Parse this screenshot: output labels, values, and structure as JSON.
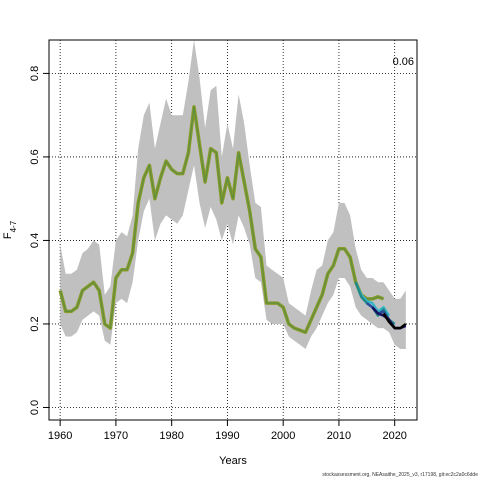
{
  "chart_data": {
    "type": "line",
    "title": "",
    "xlabel": "Years",
    "ylabel_main": "F",
    "ylabel_sub": "4-7",
    "corner_label": "0.06",
    "footer": "stockassessment.org, NEAsaithe_2025_v3, r17198, git:ec2c2a0c6dde",
    "xlim": [
      1958,
      2024
    ],
    "ylim": [
      -0.03,
      0.88
    ],
    "xticks": [
      1960,
      1970,
      1980,
      1990,
      2000,
      2010,
      2020
    ],
    "yticks": [
      0.0,
      0.2,
      0.4,
      0.6,
      0.8
    ],
    "grid": true,
    "colors": {
      "band": "#c0c0c0",
      "main_line": "#8a9a2a",
      "main_line_inner": "#5e8f3e",
      "grid": "#000000"
    },
    "band": {
      "x": [
        1960,
        1961,
        1962,
        1963,
        1964,
        1965,
        1966,
        1967,
        1968,
        1969,
        1970,
        1971,
        1972,
        1973,
        1974,
        1975,
        1976,
        1977,
        1978,
        1979,
        1980,
        1981,
        1982,
        1983,
        1984,
        1985,
        1986,
        1987,
        1988,
        1989,
        1990,
        1991,
        1992,
        1993,
        1994,
        1995,
        1996,
        1997,
        1998,
        1999,
        2000,
        2001,
        2002,
        2003,
        2004,
        2005,
        2006,
        2007,
        2008,
        2009,
        2010,
        2011,
        2012,
        2013,
        2014,
        2015,
        2016,
        2017,
        2018,
        2019,
        2020,
        2021,
        2022
      ],
      "lower": [
        0.2,
        0.17,
        0.17,
        0.18,
        0.21,
        0.22,
        0.23,
        0.22,
        0.16,
        0.15,
        0.25,
        0.26,
        0.25,
        0.3,
        0.4,
        0.47,
        0.5,
        0.4,
        0.44,
        0.46,
        0.45,
        0.44,
        0.46,
        0.52,
        0.58,
        0.49,
        0.43,
        0.48,
        0.45,
        0.4,
        0.44,
        0.39,
        0.46,
        0.43,
        0.39,
        0.31,
        0.3,
        0.21,
        0.2,
        0.2,
        0.2,
        0.17,
        0.16,
        0.15,
        0.14,
        0.17,
        0.19,
        0.22,
        0.25,
        0.27,
        0.31,
        0.31,
        0.29,
        0.24,
        0.22,
        0.21,
        0.2,
        0.19,
        0.19,
        0.18,
        0.15,
        0.14,
        0.14
      ],
      "upper": [
        0.39,
        0.32,
        0.32,
        0.33,
        0.37,
        0.38,
        0.4,
        0.39,
        0.27,
        0.29,
        0.4,
        0.42,
        0.41,
        0.46,
        0.62,
        0.7,
        0.73,
        0.62,
        0.68,
        0.74,
        0.7,
        0.7,
        0.7,
        0.78,
        0.88,
        0.79,
        0.67,
        0.76,
        0.77,
        0.6,
        0.68,
        0.62,
        0.75,
        0.68,
        0.58,
        0.49,
        0.48,
        0.34,
        0.33,
        0.32,
        0.31,
        0.25,
        0.24,
        0.23,
        0.22,
        0.28,
        0.33,
        0.34,
        0.4,
        0.42,
        0.49,
        0.49,
        0.46,
        0.38,
        0.33,
        0.31,
        0.31,
        0.3,
        0.3,
        0.28,
        0.26,
        0.26,
        0.28
      ]
    },
    "series": [
      {
        "role": "main",
        "x": [
          1960,
          1961,
          1962,
          1963,
          1964,
          1965,
          1966,
          1967,
          1968,
          1969,
          1970,
          1971,
          1972,
          1973,
          1974,
          1975,
          1976,
          1977,
          1978,
          1979,
          1980,
          1981,
          1982,
          1983,
          1984,
          1985,
          1986,
          1987,
          1988,
          1989,
          1990,
          1991,
          1992,
          1993,
          1994,
          1995,
          1996,
          1997,
          1998,
          1999,
          2000,
          2001,
          2002,
          2003,
          2004,
          2005,
          2006,
          2007,
          2008,
          2009,
          2010,
          2011,
          2012,
          2013,
          2014,
          2015,
          2016,
          2017,
          2018
        ],
        "values": [
          0.28,
          0.23,
          0.23,
          0.24,
          0.28,
          0.29,
          0.3,
          0.28,
          0.2,
          0.19,
          0.31,
          0.33,
          0.33,
          0.37,
          0.49,
          0.55,
          0.58,
          0.5,
          0.55,
          0.59,
          0.57,
          0.56,
          0.56,
          0.61,
          0.72,
          0.63,
          0.54,
          0.62,
          0.61,
          0.49,
          0.55,
          0.5,
          0.61,
          0.54,
          0.47,
          0.38,
          0.36,
          0.25,
          0.25,
          0.25,
          0.24,
          0.2,
          0.19,
          0.185,
          0.18,
          0.21,
          0.24,
          0.27,
          0.32,
          0.34,
          0.38,
          0.38,
          0.36,
          0.3,
          0.27,
          0.26,
          0.26,
          0.265,
          0.26
        ]
      },
      {
        "role": "retro-cyan",
        "color": "#3ab6c8",
        "x": [
          2013,
          2014,
          2015,
          2016,
          2017,
          2018,
          2019
        ],
        "values": [
          0.3,
          0.27,
          0.255,
          0.25,
          0.23,
          0.24,
          0.22
        ]
      },
      {
        "role": "retro-teal",
        "color": "#1f8a8a",
        "x": [
          2013,
          2014,
          2015,
          2016,
          2017,
          2018,
          2019,
          2020
        ],
        "values": [
          0.3,
          0.265,
          0.25,
          0.24,
          0.22,
          0.235,
          0.21,
          0.2
        ]
      },
      {
        "role": "retro-blue",
        "color": "#2a4a9a",
        "x": [
          2015,
          2016,
          2017,
          2018,
          2019,
          2020,
          2021
        ],
        "values": [
          0.25,
          0.24,
          0.225,
          0.23,
          0.21,
          0.19,
          0.19
        ]
      },
      {
        "role": "retro-navy",
        "color": "#1a1060",
        "x": [
          2016,
          2017,
          2018,
          2019,
          2020,
          2021,
          2022
        ],
        "values": [
          0.24,
          0.225,
          0.22,
          0.21,
          0.19,
          0.19,
          0.195
        ]
      },
      {
        "role": "retro-black",
        "color": "#000000",
        "x": [
          2018,
          2019,
          2020,
          2021,
          2022
        ],
        "values": [
          0.225,
          0.205,
          0.19,
          0.19,
          0.2
        ]
      }
    ]
  }
}
